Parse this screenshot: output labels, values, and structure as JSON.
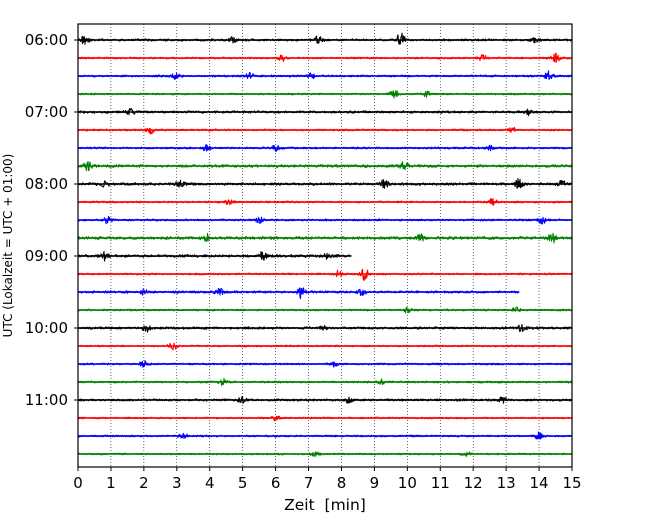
{
  "chart_data": {
    "type": "line",
    "title": "",
    "xlabel": "Zeit  [min]",
    "ylabel": "UTC (Lokalzeit = UTC + 01:00)",
    "xlim": [
      0,
      15
    ],
    "x_ticks": [
      0,
      1,
      2,
      3,
      4,
      5,
      6,
      7,
      8,
      9,
      10,
      11,
      12,
      13,
      14,
      15
    ],
    "x_grid": "dotted vertical lines at each minute",
    "y_tick_labels": [
      "06:00",
      "07:00",
      "08:00",
      "09:00",
      "10:00",
      "11:00"
    ],
    "trace_interval_minutes": 15,
    "first_trace_start": "06:00",
    "color_cycle": [
      "#000000",
      "#ff0000",
      "#0000ff",
      "#008000"
    ],
    "traces": [
      {
        "start": "06:00",
        "color": "#000000",
        "amplitude": 0.65,
        "bursts": [
          [
            0.2,
            1.0
          ],
          [
            7.3,
            0.9
          ],
          [
            9.8,
            1.6
          ],
          [
            4.7,
            0.7
          ],
          [
            13.9,
            0.6
          ]
        ]
      },
      {
        "start": "06:15",
        "color": "#ff0000",
        "amplitude": 0.55,
        "bursts": [
          [
            6.2,
            0.8
          ],
          [
            12.3,
            0.7
          ],
          [
            14.5,
            1.0
          ]
        ]
      },
      {
        "start": "06:30",
        "color": "#0000ff",
        "amplitude": 0.6,
        "bursts": [
          [
            3.0,
            0.9
          ],
          [
            5.2,
            0.7
          ],
          [
            7.1,
            0.6
          ],
          [
            14.3,
            1.0
          ]
        ]
      },
      {
        "start": "06:45",
        "color": "#008000",
        "amplitude": 0.5,
        "bursts": [
          [
            9.6,
            0.9
          ],
          [
            10.6,
            0.6
          ]
        ]
      },
      {
        "start": "07:00",
        "color": "#000000",
        "amplitude": 0.7,
        "bursts": [
          [
            1.6,
            0.8
          ],
          [
            13.7,
            0.7
          ]
        ]
      },
      {
        "start": "07:15",
        "color": "#ff0000",
        "amplitude": 0.55,
        "bursts": [
          [
            2.2,
            0.8
          ],
          [
            13.2,
            0.6
          ]
        ]
      },
      {
        "start": "07:30",
        "color": "#0000ff",
        "amplitude": 0.6,
        "bursts": [
          [
            3.9,
            0.9
          ],
          [
            6.0,
            0.7
          ],
          [
            12.5,
            0.6
          ]
        ]
      },
      {
        "start": "07:45",
        "color": "#008000",
        "amplitude": 0.8,
        "bursts": [
          [
            0.3,
            0.9
          ],
          [
            9.9,
            1.0
          ]
        ]
      },
      {
        "start": "08:00",
        "color": "#000000",
        "amplitude": 0.75,
        "bursts": [
          [
            0.8,
            0.7
          ],
          [
            3.1,
            0.8
          ],
          [
            9.3,
            0.9
          ],
          [
            13.4,
            1.3
          ],
          [
            14.7,
            0.8
          ]
        ]
      },
      {
        "start": "08:15",
        "color": "#ff0000",
        "amplitude": 0.55,
        "bursts": [
          [
            4.6,
            0.6
          ],
          [
            12.6,
            0.8
          ]
        ]
      },
      {
        "start": "08:30",
        "color": "#0000ff",
        "amplitude": 0.6,
        "bursts": [
          [
            0.9,
            0.8
          ],
          [
            5.5,
            0.7
          ],
          [
            14.1,
            0.9
          ]
        ]
      },
      {
        "start": "08:45",
        "color": "#008000",
        "amplitude": 0.85,
        "bursts": [
          [
            3.9,
            0.8
          ],
          [
            10.4,
            0.7
          ],
          [
            14.4,
            1.2
          ]
        ]
      },
      {
        "start": "09:00",
        "color": "#000000",
        "amplitude": 0.8,
        "end": 8.3,
        "bursts": [
          [
            0.8,
            0.9
          ],
          [
            5.6,
            0.9
          ],
          [
            7.6,
            0.7
          ]
        ]
      },
      {
        "start": "09:15",
        "color": "#ff0000",
        "amplitude": 0.55,
        "bursts": [
          [
            7.9,
            0.8
          ],
          [
            8.7,
            1.4
          ]
        ]
      },
      {
        "start": "09:30",
        "color": "#0000ff",
        "amplitude": 0.7,
        "end": 13.4,
        "bursts": [
          [
            2.0,
            0.7
          ],
          [
            4.3,
            0.8
          ],
          [
            6.8,
            1.6
          ],
          [
            8.6,
            0.7
          ]
        ]
      },
      {
        "start": "09:45",
        "color": "#008000",
        "amplitude": 0.55,
        "bursts": [
          [
            10.0,
            0.7
          ],
          [
            13.3,
            0.6
          ]
        ]
      },
      {
        "start": "10:00",
        "color": "#000000",
        "amplitude": 0.7,
        "bursts": [
          [
            2.1,
            0.8
          ],
          [
            7.4,
            0.6
          ],
          [
            13.5,
            0.9
          ]
        ]
      },
      {
        "start": "10:15",
        "color": "#ff0000",
        "amplitude": 0.5,
        "bursts": [
          [
            2.9,
            0.9
          ]
        ]
      },
      {
        "start": "10:30",
        "color": "#0000ff",
        "amplitude": 0.55,
        "bursts": [
          [
            2.0,
            0.7
          ],
          [
            7.8,
            0.6
          ]
        ]
      },
      {
        "start": "10:45",
        "color": "#008000",
        "amplitude": 0.6,
        "bursts": [
          [
            4.4,
            0.8
          ],
          [
            9.2,
            0.6
          ]
        ]
      },
      {
        "start": "11:00",
        "color": "#000000",
        "amplitude": 0.65,
        "bursts": [
          [
            5.0,
            0.7
          ],
          [
            8.2,
            0.6
          ],
          [
            12.9,
            0.7
          ]
        ]
      },
      {
        "start": "11:15",
        "color": "#ff0000",
        "amplitude": 0.5,
        "bursts": [
          [
            6.0,
            0.5
          ]
        ]
      },
      {
        "start": "11:30",
        "color": "#0000ff",
        "amplitude": 0.55,
        "bursts": [
          [
            14.0,
            0.8
          ],
          [
            3.2,
            0.5
          ]
        ]
      },
      {
        "start": "11:45",
        "color": "#008000",
        "amplitude": 0.5,
        "bursts": [
          [
            7.2,
            0.5
          ],
          [
            11.8,
            0.5
          ]
        ]
      }
    ]
  }
}
